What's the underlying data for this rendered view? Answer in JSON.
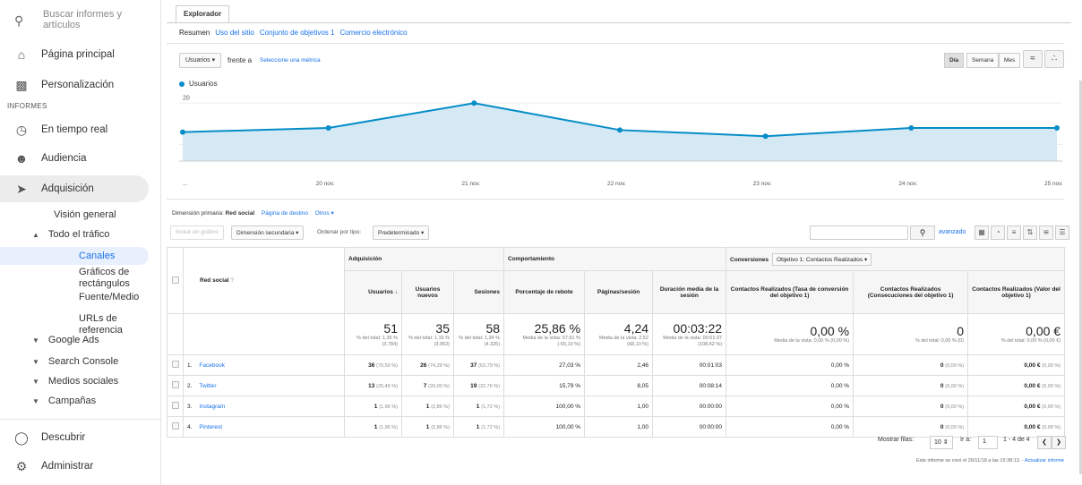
{
  "sidebar": {
    "search_placeholder": "Buscar informes y artículos",
    "home": "Página principal",
    "custom": "Personalización",
    "section": "INFORMES",
    "realtime": "En tiempo real",
    "audience": "Audiencia",
    "acquisition": "Adquisición",
    "overview": "Visión general",
    "all_traffic": "Todo el tráfico",
    "channels": "Canales",
    "treemaps": "Gráficos de rectángulos",
    "source_medium": "Fuente/Medio",
    "referrals": "URLs de referencia",
    "google_ads": "Google Ads",
    "search_console": "Search Console",
    "social": "Medios sociales",
    "campaigns": "Campañas",
    "discover": "Descubrir",
    "admin": "Administrar"
  },
  "header": {
    "tab": "Explorador",
    "subtabs": [
      "Resumen",
      "Uso del sitio",
      "Conjunto de objetivos 1",
      "Comercio electrónico"
    ]
  },
  "controls": {
    "metric": "Usuarios",
    "versus": "frente a",
    "select_metric": "Seleccione una métrica",
    "periods": [
      "Día",
      "Semana",
      "Mes"
    ]
  },
  "chart_data": {
    "type": "line",
    "series": [
      {
        "name": "Usuarios",
        "values": [
          13,
          14,
          20,
          13.5,
          12,
          14,
          14
        ]
      }
    ],
    "x": [
      "...",
      "20 nov.",
      "21 nov.",
      "22 nov.",
      "23 nov.",
      "24 nov.",
      "25 nov."
    ],
    "yticks": [
      "20",
      "10"
    ],
    "ylim": [
      6,
      22
    ],
    "color": "#058dc7",
    "fill": "#d5e9f5",
    "grid": true
  },
  "dimension": {
    "label": "Dimensión primaria:",
    "current": "Red social",
    "other": "Página de destino",
    "more": "Otros"
  },
  "toolbar": {
    "plot": "Incluir en gráfico",
    "secondary": "Dimensión secundaria",
    "sort_label": "Ordenar por tipo:",
    "sort": "Predeterminado",
    "advanced": "avanzado"
  },
  "table": {
    "groups": {
      "acq": "Adquisición",
      "beh": "Comportamiento",
      "conv": "Conversiones",
      "goal": "Objetivo 1: Contactos Realizados"
    },
    "dim_header": "Red social",
    "headers": [
      "Usuarios",
      "Usuarios nuevos",
      "Sesiones",
      "Porcentaje de rebote",
      "Páginas/sesión",
      "Duración media de la sesión",
      "Contactos Realizados (Tasa de conversión del objetivo 1)",
      "Contactos Realizados (Consecuciones del objetivo 1)",
      "Contactos Realizados (Valor del objetivo 1)"
    ],
    "totals": [
      {
        "v": "51",
        "s": "% del total: 1,35 % (3.784)"
      },
      {
        "v": "35",
        "s": "% del total: 1,15 % (3.052)"
      },
      {
        "v": "58",
        "s": "% del total: 1,34 % (4.326)"
      },
      {
        "v": "25,86 %",
        "s": "Media de la vista: 57,61 % (-55,10 %)"
      },
      {
        "v": "4,24",
        "s": "Media de la vista: 2,52 (68,10 %)"
      },
      {
        "v": "00:03:22",
        "s": "Media de la vista: 00:01:37 (108,42 %)"
      },
      {
        "v": "0,00 %",
        "s": "Media de la vista: 0,00 % (0,00 %)"
      },
      {
        "v": "0",
        "s": "% del total: 0,00 % (0)"
      },
      {
        "v": "0,00 €",
        "s": "% del total: 0,00 % (0,00 €)"
      }
    ],
    "rows": [
      {
        "idx": "1.",
        "name": "Facebook",
        "users": "36",
        "users_p": "(70,59 %)",
        "new": "26",
        "new_p": "(74,29 %)",
        "ses": "37",
        "ses_p": "(63,79 %)",
        "bounce": "27,03 %",
        "pps": "2,46",
        "dur": "00:01:03",
        "rate": "0,00 %",
        "goal": "0",
        "goal_p": "(0,00 %)",
        "val": "0,00 €",
        "val_p": "(0,00 %)"
      },
      {
        "idx": "2.",
        "name": "Twitter",
        "users": "13",
        "users_p": "(25,49 %)",
        "new": "7",
        "new_p": "(20,00 %)",
        "ses": "19",
        "ses_p": "(32,76 %)",
        "bounce": "15,79 %",
        "pps": "8,05",
        "dur": "00:08:14",
        "rate": "0,00 %",
        "goal": "0",
        "goal_p": "(0,00 %)",
        "val": "0,00 €",
        "val_p": "(0,00 %)"
      },
      {
        "idx": "3.",
        "name": "Instagram",
        "users": "1",
        "users_p": "(1,96 %)",
        "new": "1",
        "new_p": "(2,86 %)",
        "ses": "1",
        "ses_p": "(1,72 %)",
        "bounce": "100,00 %",
        "pps": "1,00",
        "dur": "00:00:00",
        "rate": "0,00 %",
        "goal": "0",
        "goal_p": "(0,00 %)",
        "val": "0,00 €",
        "val_p": "(0,00 %)"
      },
      {
        "idx": "4.",
        "name": "Pinterest",
        "users": "1",
        "users_p": "(1,96 %)",
        "new": "1",
        "new_p": "(2,86 %)",
        "ses": "1",
        "ses_p": "(1,72 %)",
        "bounce": "100,00 %",
        "pps": "1,00",
        "dur": "00:00:00",
        "rate": "0,00 %",
        "goal": "0",
        "goal_p": "(0,00 %)",
        "val": "0,00 €",
        "val_p": "(0,00 %)"
      }
    ]
  },
  "pagination": {
    "show_rows": "Mostrar filas:",
    "rows": "10",
    "goto": "Ir a:",
    "page": "1",
    "range": "1 - 4 de 4"
  },
  "footer": {
    "text": "Este informe se creó el 26/11/18 a las 15:38:13. -",
    "link": "Actualizar informe"
  }
}
